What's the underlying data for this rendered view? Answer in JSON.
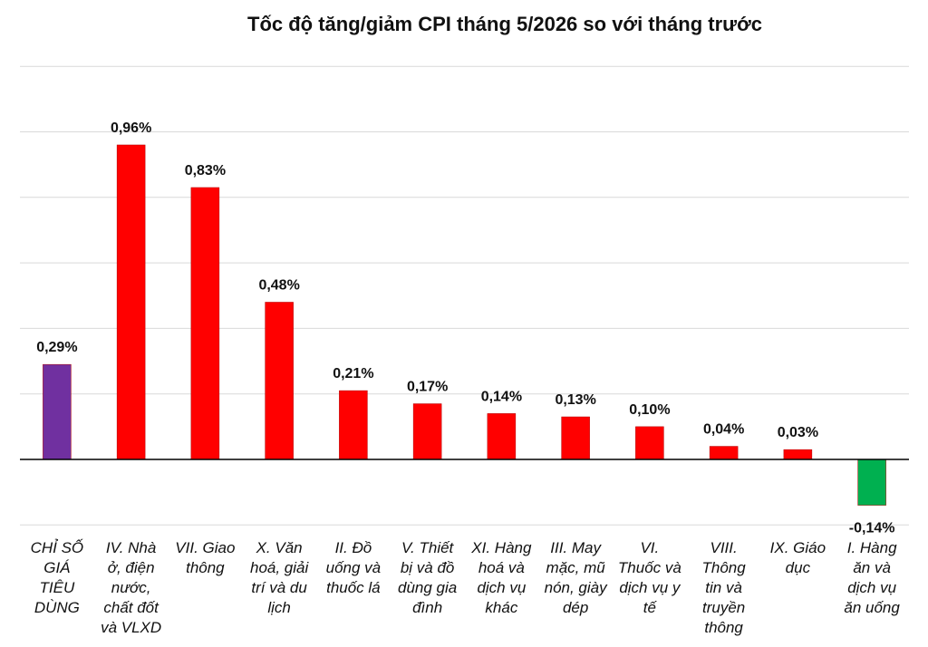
{
  "chart_data": {
    "type": "bar",
    "title": "Tốc độ tăng/giảm CPI tháng 5/2026 so với tháng trước",
    "xlabel": "",
    "ylabel": "",
    "ylim": [
      -0.2,
      1.2
    ],
    "grid": true,
    "legend": "none",
    "categories": [
      "CHỈ SỐ GIÁ TIÊU DÙNG",
      "IV. Nhà ở, điện nước, chất đốt và VLXD",
      "VII. Giao thông",
      "X. Văn hoá, giải trí và du lịch",
      "II. Đồ uống và thuốc lá",
      "V. Thiết bị và đồ dùng gia đình",
      "XI. Hàng hoá và dịch vụ khác",
      "III. May mặc, mũ nón, giày dép",
      "VI. Thuốc và dịch vụ y tế",
      "VIII. Thông tin và truyền thông",
      "IX. Giáo dục",
      "I. Hàng ăn và dịch vụ ăn uống"
    ],
    "category_lines": [
      [
        "CHỈ SỐ",
        "GIÁ",
        "TIÊU",
        "DÙNG"
      ],
      [
        "IV. Nhà",
        "ở, điện",
        "nước,",
        "chất đốt",
        "và VLXD"
      ],
      [
        "VII. Giao",
        "thông"
      ],
      [
        "X. Văn",
        "hoá, giải",
        "trí và du",
        "lịch"
      ],
      [
        "II. Đồ",
        "uống và",
        "thuốc lá"
      ],
      [
        "V. Thiết",
        "bị và đồ",
        "dùng gia",
        "đình"
      ],
      [
        "XI. Hàng",
        "hoá và",
        "dịch vụ",
        "khác"
      ],
      [
        "III. May",
        "mặc, mũ",
        "nón, giày",
        "dép"
      ],
      [
        "VI.",
        "Thuốc và",
        "dịch vụ y",
        "tế"
      ],
      [
        "VIII.",
        "Thông",
        "tin và",
        "truyền",
        "thông"
      ],
      [
        "IX. Giáo",
        "dục"
      ],
      [
        "I. Hàng",
        "ăn và",
        "dịch vụ",
        "ăn uống"
      ]
    ],
    "values": [
      0.29,
      0.96,
      0.83,
      0.48,
      0.21,
      0.17,
      0.14,
      0.13,
      0.1,
      0.04,
      0.03,
      -0.14
    ],
    "value_labels": [
      "0,29%",
      "0,96%",
      "0,83%",
      "0,48%",
      "0,21%",
      "0,17%",
      "0,14%",
      "0,13%",
      "0,10%",
      "0,04%",
      "0,03%",
      "-0,14%"
    ],
    "colors": {
      "total": "#7030a0",
      "increase": "#ff0000",
      "decrease": "#00b050"
    }
  }
}
